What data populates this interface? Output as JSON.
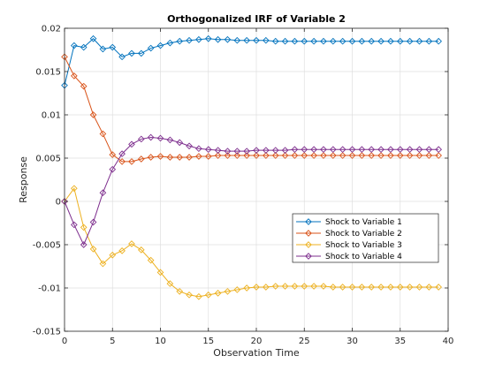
{
  "chart_data": {
    "type": "line",
    "title": "Orthogonalized IRF of Variable 2",
    "xlabel": "Observation Time",
    "ylabel": "Response",
    "xlim": [
      0,
      40
    ],
    "ylim": [
      -0.015,
      0.02
    ],
    "xticks": [
      0,
      5,
      10,
      15,
      20,
      25,
      30,
      35,
      40
    ],
    "xtick_labels": [
      "0",
      "5",
      "10",
      "15",
      "20",
      "25",
      "30",
      "35",
      "40"
    ],
    "yticks": [
      -0.015,
      -0.01,
      -0.005,
      0,
      0.005,
      0.01,
      0.015,
      0.02
    ],
    "ytick_labels": [
      "-0.015",
      "-0.01",
      "-0.005",
      "0",
      "0.005",
      "0.01",
      "0.015",
      "0.02"
    ],
    "grid": true,
    "legend_position": "lower-right",
    "marker": "diamond",
    "x": [
      0,
      1,
      2,
      3,
      4,
      5,
      6,
      7,
      8,
      9,
      10,
      11,
      12,
      13,
      14,
      15,
      16,
      17,
      18,
      19,
      20,
      21,
      22,
      23,
      24,
      25,
      26,
      27,
      28,
      29,
      30,
      31,
      32,
      33,
      34,
      35,
      36,
      37,
      38,
      39
    ],
    "series": [
      {
        "name": "Shock to Variable 1",
        "color": "#0072BD",
        "values": [
          0.0134,
          0.018,
          0.0178,
          0.0188,
          0.0176,
          0.0178,
          0.0167,
          0.0171,
          0.0171,
          0.0177,
          0.018,
          0.0183,
          0.0185,
          0.0186,
          0.0187,
          0.0188,
          0.0187,
          0.0187,
          0.0186,
          0.0186,
          0.0186,
          0.0186,
          0.0185,
          0.0185,
          0.0185,
          0.0185,
          0.0185,
          0.0185,
          0.0185,
          0.0185,
          0.0185,
          0.0185,
          0.0185,
          0.0185,
          0.0185,
          0.0185,
          0.0185,
          0.0185,
          0.0185,
          0.0185
        ]
      },
      {
        "name": "Shock to Variable 2",
        "color": "#D95319",
        "values": [
          0.0167,
          0.0145,
          0.0133,
          0.01,
          0.0078,
          0.0054,
          0.0046,
          0.0046,
          0.0049,
          0.0051,
          0.0052,
          0.0051,
          0.0051,
          0.0051,
          0.0052,
          0.0052,
          0.0053,
          0.0053,
          0.0053,
          0.0053,
          0.0053,
          0.0053,
          0.0053,
          0.0053,
          0.0053,
          0.0053,
          0.0053,
          0.0053,
          0.0053,
          0.0053,
          0.0053,
          0.0053,
          0.0053,
          0.0053,
          0.0053,
          0.0053,
          0.0053,
          0.0053,
          0.0053,
          0.0053
        ]
      },
      {
        "name": "Shock to Variable 3",
        "color": "#EDB120",
        "values": [
          0.0,
          0.0015,
          -0.003,
          -0.0055,
          -0.0072,
          -0.0062,
          -0.0057,
          -0.0049,
          -0.0056,
          -0.0068,
          -0.0082,
          -0.0095,
          -0.0104,
          -0.0108,
          -0.011,
          -0.0108,
          -0.0106,
          -0.0104,
          -0.0102,
          -0.01,
          -0.0099,
          -0.0099,
          -0.0098,
          -0.0098,
          -0.0098,
          -0.0098,
          -0.0098,
          -0.0098,
          -0.0099,
          -0.0099,
          -0.0099,
          -0.0099,
          -0.0099,
          -0.0099,
          -0.0099,
          -0.0099,
          -0.0099,
          -0.0099,
          -0.0099,
          -0.0099
        ]
      },
      {
        "name": "Shock to Variable 4",
        "color": "#7E2F8E",
        "values": [
          0.0,
          -0.0027,
          -0.005,
          -0.0024,
          0.001,
          0.0037,
          0.0055,
          0.0066,
          0.0072,
          0.0074,
          0.0073,
          0.0071,
          0.0068,
          0.0064,
          0.0061,
          0.006,
          0.0059,
          0.0058,
          0.0058,
          0.0058,
          0.0059,
          0.0059,
          0.0059,
          0.0059,
          0.006,
          0.006,
          0.006,
          0.006,
          0.006,
          0.006,
          0.006,
          0.006,
          0.006,
          0.006,
          0.006,
          0.006,
          0.006,
          0.006,
          0.006,
          0.006
        ]
      }
    ]
  }
}
